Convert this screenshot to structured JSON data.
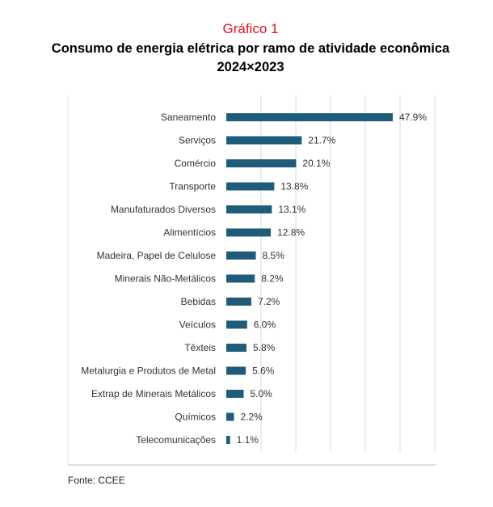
{
  "header": {
    "figure_label": "Gráfico 1",
    "title_line1": "Consumo de energia elétrica por ramo de atividade econômica",
    "title_line2": "2024×2023"
  },
  "source": "Fonte: CCEE",
  "colors": {
    "bar": "#1f5c7a",
    "grid": "#d9d9d9",
    "figure_label": "#e8101c"
  },
  "chart_data": {
    "type": "bar",
    "orientation": "horizontal",
    "categories": [
      "Saneamento",
      "Serviços",
      "Comércio",
      "Transporte",
      "Manufaturados Diversos",
      "Alimentícios",
      "Madeira, Papel de Celulose",
      "Minerais Não-Metálicos",
      "Bebidas",
      "Veículos",
      "Têxteis",
      "Metalurgia e Produtos de Metal",
      "Extrap de Minerais Metálicos",
      "Químicos",
      "Telecomunicações"
    ],
    "values": [
      47.9,
      21.7,
      20.1,
      13.8,
      13.1,
      12.8,
      8.5,
      8.2,
      7.2,
      6.0,
      5.8,
      5.6,
      5.0,
      2.2,
      1.1
    ],
    "value_labels": [
      "47.9%",
      "21.7%",
      "20.1%",
      "13.8%",
      "13.1%",
      "12.8%",
      "8.5%",
      "8.2%",
      "7.2%",
      "6.0%",
      "5.8%",
      "5.6%",
      "5.0%",
      "2.2%",
      "1.1%"
    ],
    "xlim": [
      0,
      60
    ],
    "grid": true,
    "unit": "%"
  }
}
